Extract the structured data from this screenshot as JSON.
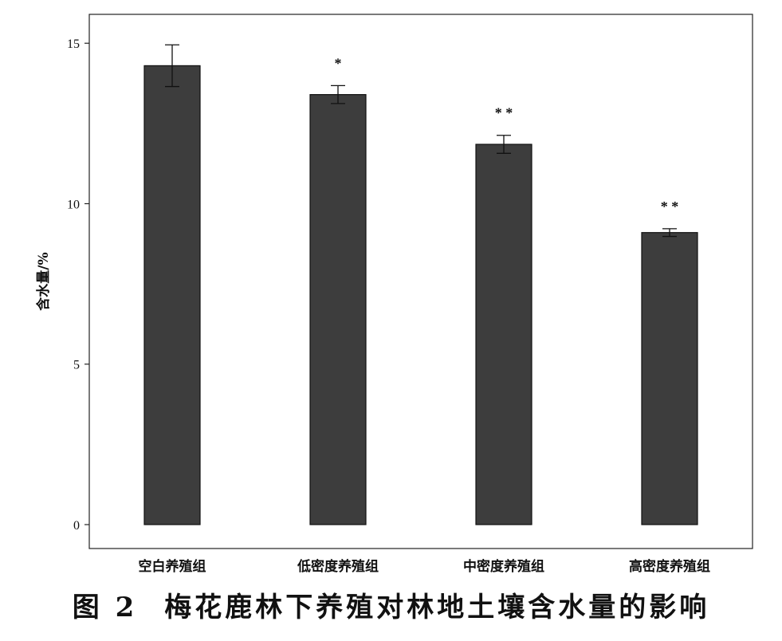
{
  "chart_data": {
    "type": "bar",
    "categories": [
      "空白养殖组",
      "低密度养殖组",
      "中密度养殖组",
      "高密度养殖组"
    ],
    "values": [
      14.3,
      13.4,
      11.85,
      9.1
    ],
    "errors": [
      0.65,
      0.28,
      0.28,
      0.12
    ],
    "significance": [
      "",
      "*",
      "**",
      "**"
    ],
    "ylabel": "含水量/%",
    "ylim": [
      0,
      15.9
    ],
    "yticks": [
      0,
      5,
      10,
      15
    ],
    "grid": false,
    "bar_color": "#3d3d3d",
    "title": ""
  },
  "caption": {
    "figure_number": "图 2",
    "text": "梅花鹿林下养殖对林地土壤含水量的影响"
  }
}
